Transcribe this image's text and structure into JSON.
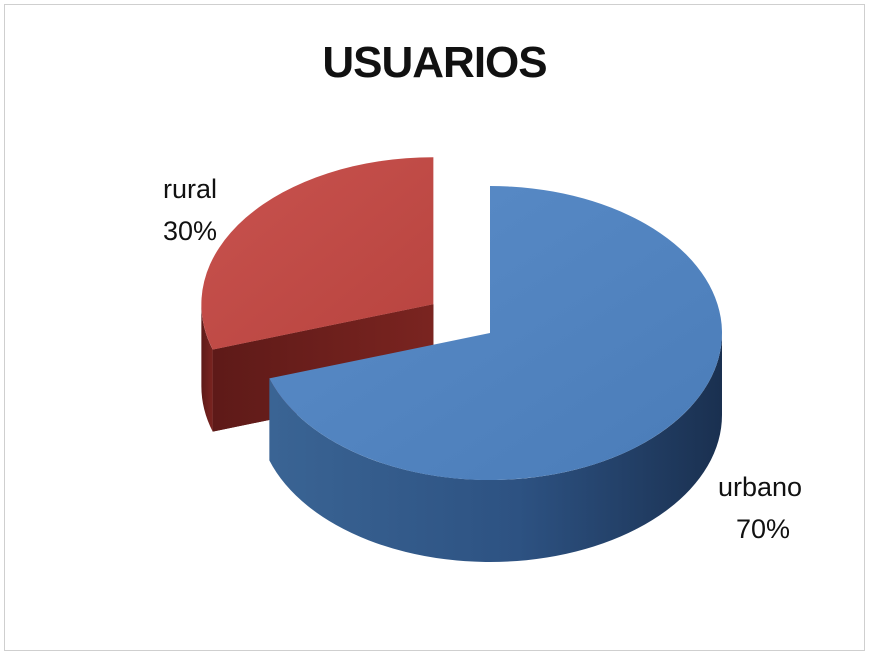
{
  "chart_data": {
    "type": "pie",
    "title": "USUARIOS",
    "slices": [
      {
        "label": "urbano",
        "value": 70,
        "value_label": "70%",
        "color": "#4f81bd"
      },
      {
        "label": "rural",
        "value": 30,
        "value_label": "30%",
        "color": "#c0504d"
      }
    ],
    "legend": "none"
  }
}
